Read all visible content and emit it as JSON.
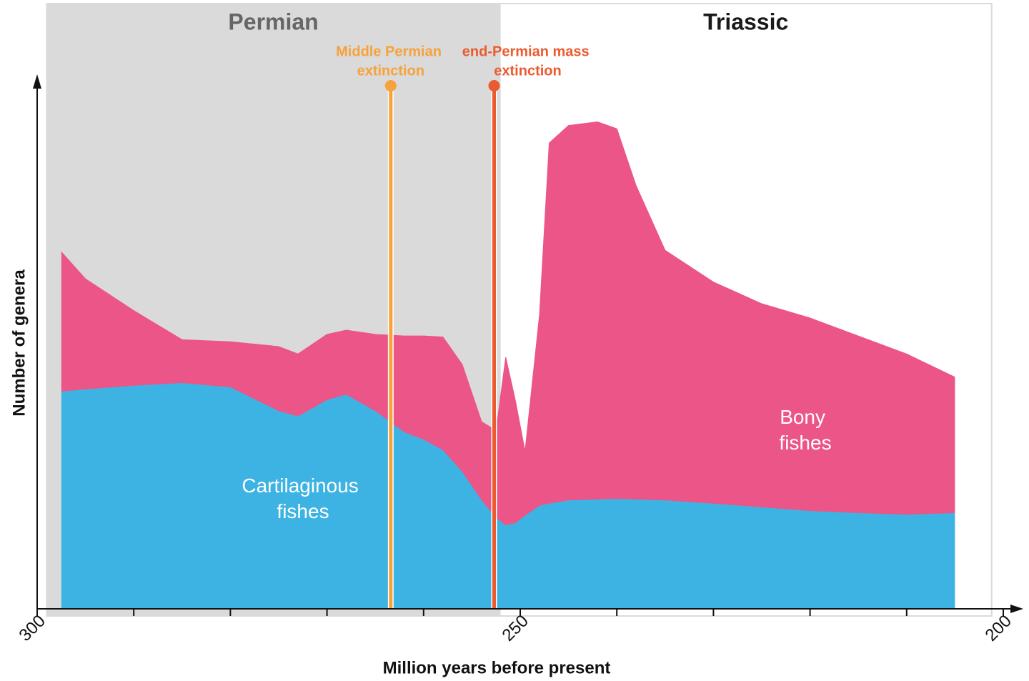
{
  "chart_data": {
    "type": "area",
    "stacked": true,
    "xlabel": "Million years before present",
    "ylabel": "Number of genera",
    "xlim": [
      300,
      200
    ],
    "ylim": [
      0,
      100
    ],
    "xticks": [
      300,
      250,
      200
    ],
    "xticks_minor": [
      290,
      280,
      270,
      260,
      240,
      230,
      220,
      210
    ],
    "x": [
      297.5,
      295,
      290,
      285,
      280,
      275,
      273,
      270,
      268,
      265,
      262,
      260,
      258,
      256,
      254,
      252.5,
      251.5,
      250.5,
      249.5,
      248,
      247,
      245,
      242,
      240,
      238,
      235,
      230,
      225,
      220,
      215,
      210,
      205
    ],
    "series": [
      {
        "name": "Cartilaginous fishes",
        "color": "#3db3e4",
        "values": [
          41.1,
          41.5,
          42.2,
          42.7,
          41.9,
          37.4,
          36.4,
          39.5,
          40.5,
          37.4,
          33.4,
          32.0,
          30.0,
          25.9,
          20.5,
          17.2,
          15.8,
          16.2,
          17.6,
          19.5,
          19.9,
          20.5,
          20.7,
          20.8,
          20.7,
          20.5,
          19.9,
          19.2,
          18.5,
          18.1,
          17.8,
          18.1
        ]
      },
      {
        "name": "Bony fishes",
        "color": "#ec5587",
        "values": [
          26.4,
          20.9,
          14.2,
          8.2,
          8.6,
          12.2,
          11.8,
          12.4,
          12.2,
          14.5,
          18.2,
          19.6,
          21.4,
          20.3,
          14.9,
          16.5,
          31.8,
          23.2,
          12.2,
          36.2,
          68.2,
          70.9,
          71.4,
          70.0,
          59.3,
          47.3,
          41.9,
          38.5,
          36.5,
          33.5,
          30.4,
          25.7
        ]
      }
    ],
    "periods": [
      {
        "name": "Permian",
        "start": 299,
        "end": 252.1,
        "color": "#d9dad9"
      },
      {
        "name": "Triassic",
        "start": 252.1,
        "end": 201.2,
        "color": "#ffffff"
      }
    ],
    "events": [
      {
        "label": "Middle Permian extinction",
        "x": 263.4,
        "color": "#f7a23a"
      },
      {
        "label": "end-Permian mass extinction",
        "x": 252.7,
        "color": "#ec5a2f"
      }
    ]
  }
}
